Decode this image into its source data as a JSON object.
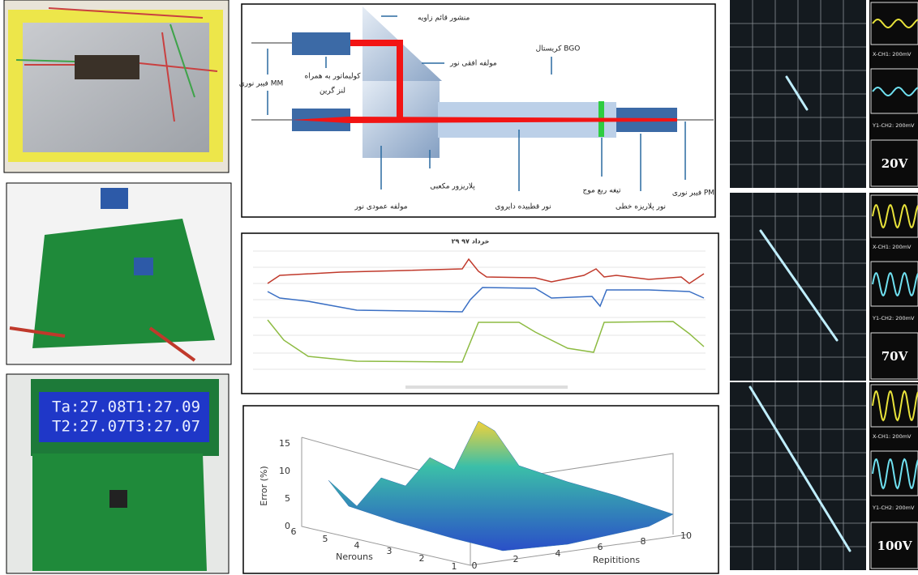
{
  "diagram": {
    "labels": [
      "منشور قائم زاویه",
      "مولفه افقی نور",
      "کریستال BGO",
      "کولیماتور به همراه",
      "لنز گرین",
      "فیبر نوری MM",
      "پلاریزور مکعبی",
      "مولفه عمودی نور",
      "نور قطبیده دایروی",
      "تیغه ربع موج",
      "نور پلاریزه خطی",
      "فیبر نوری PM"
    ]
  },
  "lcd": {
    "line1": "Ta:27.08T1:27.09",
    "line2": "T2:27.07T3:27.07"
  },
  "line_chart": {
    "title": "۲۹ خرداد ۹۷"
  },
  "surface_plot": {
    "z_label": "Error (%)",
    "z_ticks": [
      0,
      5,
      10,
      15
    ],
    "y_label": "Nerouns",
    "y_ticks": [
      1,
      2,
      3,
      4,
      5,
      6
    ],
    "x_label": "Repititions",
    "x_ticks": [
      0,
      2,
      4,
      6,
      8,
      10
    ]
  },
  "oscilloscope": [
    {
      "ch1": "X-CH1: 200mV",
      "ch2": "Y1-CH2: 200mV",
      "voltage": "20V"
    },
    {
      "ch1": "X-CH1: 200mV",
      "ch2": "Y1-CH2: 200mV",
      "voltage": "70V"
    },
    {
      "ch1": "X-CH1: 200mV",
      "ch2": "Y1-CH2: 200mV",
      "voltage": "100V"
    }
  ]
}
